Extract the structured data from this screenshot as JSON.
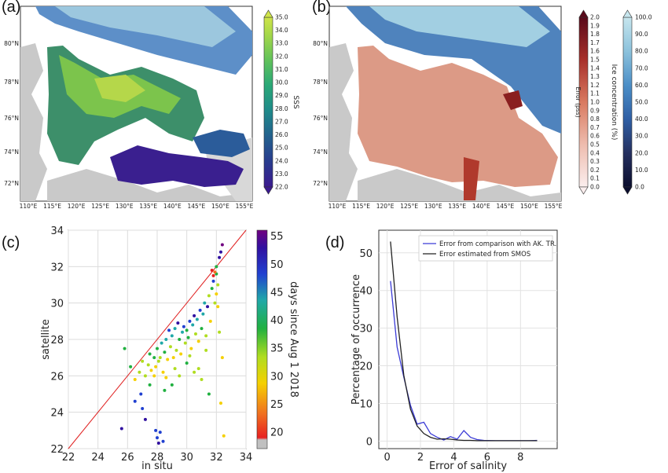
{
  "panels": {
    "a": "(a)",
    "b": "(b)",
    "c": "(c)",
    "d": "(d)"
  },
  "chart_data": [
    {
      "type": "heatmap",
      "panel": "(a)",
      "description_kind": "map",
      "xticks": [
        "110°E",
        "115°E",
        "120°E",
        "125°E",
        "130°E",
        "135°E",
        "140°E",
        "145°E",
        "150°E",
        "155°E"
      ],
      "yticks": [
        "80°N",
        "78°N",
        "76°N",
        "74°N",
        "72°N"
      ],
      "colorbar": {
        "label": "SSS",
        "ticks": [
          "35.0",
          "34.0",
          "33.0",
          "32.0",
          "31.0",
          "30.0",
          "29.0",
          "28.0",
          "27.0",
          "26.0",
          "25.0",
          "24.0",
          "23.0",
          "22.0"
        ],
        "range": [
          22,
          35
        ]
      }
    },
    {
      "type": "heatmap",
      "panel": "(b)",
      "description_kind": "map",
      "xticks": [
        "110°E",
        "115°E",
        "120°E",
        "125°E",
        "130°E",
        "135°E",
        "140°E",
        "145°E",
        "150°E",
        "155°E"
      ],
      "yticks": [
        "80°N",
        "78°N",
        "76°N",
        "74°N",
        "72°N"
      ],
      "colorbar_error": {
        "label": "Error (pss)",
        "ticks": [
          "2.0",
          "1.9",
          "1.8",
          "1.7",
          "1.6",
          "1.5",
          "1.4",
          "1.3",
          "1.2",
          "1.1",
          "1.0",
          "0.9",
          "0.8",
          "0.7",
          "0.6",
          "0.5",
          "0.4",
          "0.3",
          "0.2",
          "0.1",
          "0.0"
        ],
        "range": [
          0,
          2
        ]
      },
      "colorbar_ice": {
        "label": "Ice concentration (%)",
        "ticks": [
          "100.0",
          "90.0",
          "80.0",
          "70.0",
          "60.0",
          "50.0",
          "40.0",
          "30.0",
          "20.0",
          "10.0",
          "0.0"
        ],
        "range": [
          0,
          100
        ]
      }
    },
    {
      "type": "scatter",
      "panel": "(c)",
      "xlabel": "in situ",
      "ylabel": "satellite",
      "xlim": [
        22,
        34
      ],
      "ylim": [
        22,
        34
      ],
      "xticks": [
        "22",
        "24",
        "26",
        "28",
        "30",
        "32",
        "34"
      ],
      "yticks": [
        "22",
        "24",
        "26",
        "28",
        "30",
        "32",
        "34"
      ],
      "grid": true,
      "colorbar": {
        "label": "days since Aug 1 2018",
        "ticks": [
          "55",
          "50",
          "45",
          "40",
          "35",
          "30",
          "25",
          "20"
        ],
        "range": [
          17,
          56
        ]
      },
      "points": [
        [
          25.8,
          27.5,
          38
        ],
        [
          26.2,
          26.5,
          36
        ],
        [
          26.5,
          25.8,
          30
        ],
        [
          26.8,
          26.2,
          32
        ],
        [
          27.0,
          26.8,
          35
        ],
        [
          27.2,
          26.0,
          31
        ],
        [
          27.4,
          26.6,
          33
        ],
        [
          27.5,
          27.2,
          38
        ],
        [
          27.6,
          26.3,
          29
        ],
        [
          27.8,
          27.0,
          40
        ],
        [
          27.9,
          26.5,
          30
        ],
        [
          28.0,
          27.5,
          37
        ],
        [
          28.1,
          26.8,
          31
        ],
        [
          28.2,
          27.0,
          33
        ],
        [
          28.3,
          27.8,
          42
        ],
        [
          28.4,
          26.2,
          28
        ],
        [
          28.5,
          27.3,
          36
        ],
        [
          28.6,
          28.0,
          44
        ],
        [
          28.7,
          26.9,
          30
        ],
        [
          28.8,
          28.5,
          48
        ],
        [
          28.9,
          27.6,
          34
        ],
        [
          29.0,
          28.2,
          41
        ],
        [
          29.1,
          27.0,
          29
        ],
        [
          29.2,
          28.6,
          45
        ],
        [
          29.3,
          27.4,
          32
        ],
        [
          29.4,
          28.9,
          50
        ],
        [
          29.5,
          28.0,
          38
        ],
        [
          29.6,
          27.2,
          30
        ],
        [
          29.7,
          28.4,
          43
        ],
        [
          29.8,
          28.7,
          46
        ],
        [
          29.9,
          27.8,
          33
        ],
        [
          30.0,
          28.5,
          40
        ],
        [
          30.1,
          28.1,
          36
        ],
        [
          30.2,
          29.0,
          47
        ],
        [
          30.3,
          27.5,
          29
        ],
        [
          30.4,
          28.8,
          44
        ],
        [
          30.5,
          29.3,
          51
        ],
        [
          30.6,
          28.3,
          35
        ],
        [
          30.7,
          29.1,
          42
        ],
        [
          30.8,
          27.9,
          30
        ],
        [
          30.9,
          29.6,
          48
        ],
        [
          31.0,
          28.6,
          37
        ],
        [
          31.1,
          29.4,
          45
        ],
        [
          31.2,
          30.0,
          41
        ],
        [
          31.3,
          28.2,
          31
        ],
        [
          31.4,
          29.8,
          50
        ],
        [
          31.5,
          30.4,
          34
        ],
        [
          31.6,
          29.0,
          29
        ],
        [
          31.7,
          30.8,
          38
        ],
        [
          31.8,
          31.2,
          46
        ],
        [
          31.9,
          30.0,
          32
        ],
        [
          32.0,
          31.6,
          36
        ],
        [
          31.7,
          31.8,
          20
        ],
        [
          31.8,
          31.5,
          19
        ],
        [
          31.9,
          31.7,
          21
        ],
        [
          32.0,
          32.0,
          40
        ],
        [
          32.1,
          31.0,
          33
        ],
        [
          32.2,
          32.5,
          50
        ],
        [
          32.3,
          32.8,
          53
        ],
        [
          32.4,
          33.2,
          55
        ],
        [
          32.0,
          30.5,
          30
        ],
        [
          32.1,
          29.8,
          28
        ],
        [
          32.2,
          28.4,
          31
        ],
        [
          32.4,
          27.0,
          30
        ],
        [
          32.5,
          22.7,
          29
        ],
        [
          32.3,
          24.5,
          26
        ],
        [
          31.5,
          25.0,
          37
        ],
        [
          31.0,
          25.8,
          35
        ],
        [
          30.5,
          26.2,
          33
        ],
        [
          30.0,
          26.7,
          36
        ],
        [
          29.5,
          26.0,
          34
        ],
        [
          29.0,
          25.5,
          37
        ],
        [
          28.5,
          25.2,
          38
        ],
        [
          28.0,
          22.6,
          48
        ],
        [
          28.2,
          22.9,
          47
        ],
        [
          28.4,
          22.4,
          49
        ],
        [
          27.9,
          23.0,
          48
        ],
        [
          28.1,
          22.3,
          50
        ],
        [
          27.2,
          23.6,
          50
        ],
        [
          27.0,
          24.2,
          49
        ],
        [
          26.9,
          25.0,
          48
        ],
        [
          25.6,
          23.1,
          50
        ],
        [
          26.5,
          24.6,
          47
        ],
        [
          27.5,
          25.5,
          38
        ],
        [
          27.8,
          26.0,
          29
        ],
        [
          28.6,
          25.9,
          30
        ],
        [
          29.2,
          26.4,
          31
        ],
        [
          30.2,
          27.1,
          33
        ],
        [
          30.8,
          26.4,
          32
        ],
        [
          31.3,
          27.4,
          34
        ]
      ]
    },
    {
      "type": "line",
      "panel": "(d)",
      "xlabel": "Error of salinity",
      "ylabel": "Percentage of occurrence",
      "xlim": [
        -0.5,
        10.2
      ],
      "ylim": [
        -2,
        56
      ],
      "xticks": [
        "0",
        "2",
        "4",
        "6",
        "8"
      ],
      "yticks": [
        "0",
        "10",
        "20",
        "30",
        "40",
        "50"
      ],
      "legend_position": "top-right",
      "series": [
        {
          "name": "Error from comparison with AK. TR.",
          "color": "#3b3bd6",
          "x": [
            0.2,
            0.6,
            1.0,
            1.4,
            1.8,
            2.2,
            2.6,
            3.0,
            3.4,
            3.8,
            4.2,
            4.6,
            5.0,
            5.4,
            5.8,
            6.5,
            7.5,
            8.5,
            9.0
          ],
          "y": [
            42.5,
            25.0,
            17.0,
            9.5,
            4.5,
            5.0,
            2.0,
            1.0,
            0.3,
            1.2,
            0.5,
            2.8,
            1.0,
            0.4,
            0.2,
            0.1,
            0.1,
            0.1,
            0.2
          ]
        },
        {
          "name": "Error estimated from SMOS",
          "color": "#222222",
          "x": [
            0.2,
            0.6,
            1.0,
            1.4,
            1.8,
            2.2,
            2.6,
            3.0,
            3.4,
            3.8,
            4.2,
            4.6,
            5.0,
            5.4,
            5.8,
            6.5,
            7.5,
            8.5,
            9.0
          ],
          "y": [
            53.0,
            33.0,
            17.5,
            8.5,
            4.0,
            2.0,
            1.0,
            0.5,
            0.6,
            0.5,
            0.3,
            0.2,
            0.2,
            0.1,
            0.1,
            0.1,
            0.1,
            0.1,
            0.1
          ]
        }
      ]
    }
  ]
}
